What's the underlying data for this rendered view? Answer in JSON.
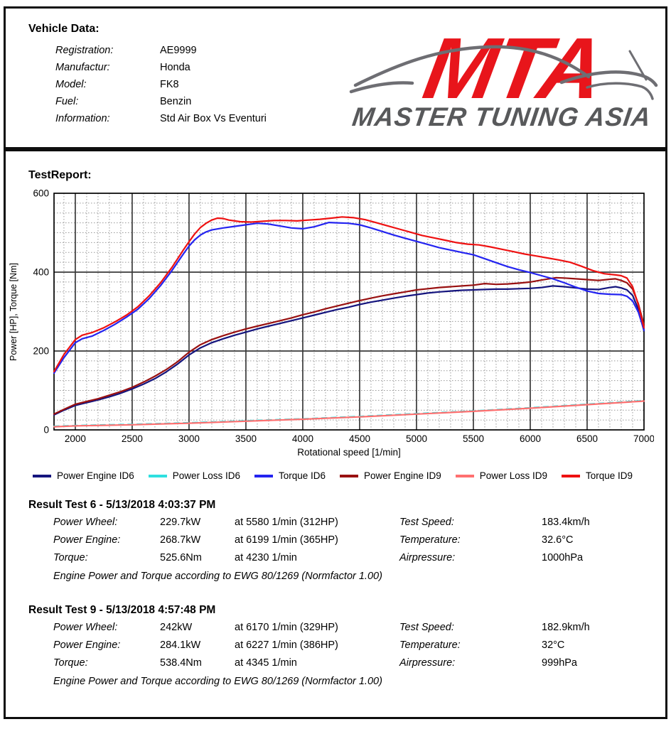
{
  "header": {
    "vehicle_data_title": "Vehicle Data:",
    "fields": [
      {
        "label": "Registration:",
        "value": "AE9999"
      },
      {
        "label": "Manufactur:",
        "value": "Honda"
      },
      {
        "label": "Model:",
        "value": "FK8"
      },
      {
        "label": "Fuel:",
        "value": "Benzin"
      },
      {
        "label": "Information:",
        "value": "Std Air Box Vs Eventuri"
      }
    ],
    "logo": {
      "acronym": "MTA",
      "name": "MASTER TUNING ASIA",
      "accent_color": "#e8151b",
      "gray_color": "#58595b",
      "car_color": "#6e6e73"
    }
  },
  "report": {
    "title": "TestReport:"
  },
  "chart_data": {
    "type": "line",
    "title": "",
    "xlabel": "Rotational  speed [1/min]",
    "ylabel": "Power [HP], Torque [Nm]",
    "xlim": [
      1813,
      7000
    ],
    "ylim": [
      0,
      600
    ],
    "x_ticks": [
      2000,
      2500,
      3000,
      3500,
      4000,
      4500,
      5000,
      5500,
      6000,
      6500,
      7000
    ],
    "y_ticks": [
      0,
      200,
      400,
      600
    ],
    "minor_x_step": 100,
    "major_x_step": 500,
    "minor_y_step": 25,
    "major_y_step": 200,
    "grid": true,
    "legend_position": "bottom",
    "grid_minor_color": "#999999",
    "grid_major_color": "#3a3a3a",
    "series": [
      {
        "name": "Power Engine ID6",
        "color": "#15157e",
        "points": [
          [
            1813,
            38
          ],
          [
            1900,
            50
          ],
          [
            2000,
            62
          ],
          [
            2100,
            69
          ],
          [
            2200,
            76
          ],
          [
            2300,
            84
          ],
          [
            2400,
            93
          ],
          [
            2500,
            104
          ],
          [
            2600,
            116
          ],
          [
            2700,
            130
          ],
          [
            2800,
            147
          ],
          [
            2900,
            167
          ],
          [
            3000,
            190
          ],
          [
            3100,
            208
          ],
          [
            3200,
            221
          ],
          [
            3300,
            231
          ],
          [
            3400,
            240
          ],
          [
            3500,
            248
          ],
          [
            3600,
            256
          ],
          [
            3700,
            263
          ],
          [
            3800,
            270
          ],
          [
            3900,
            277
          ],
          [
            4000,
            284
          ],
          [
            4100,
            291
          ],
          [
            4200,
            298
          ],
          [
            4300,
            305
          ],
          [
            4400,
            311
          ],
          [
            4500,
            318
          ],
          [
            4600,
            324
          ],
          [
            4700,
            329
          ],
          [
            4800,
            334
          ],
          [
            4900,
            339
          ],
          [
            5000,
            343
          ],
          [
            5100,
            347
          ],
          [
            5200,
            350
          ],
          [
            5300,
            352
          ],
          [
            5400,
            354
          ],
          [
            5500,
            355
          ],
          [
            5600,
            356
          ],
          [
            5700,
            357
          ],
          [
            5800,
            357
          ],
          [
            5900,
            358
          ],
          [
            6000,
            359
          ],
          [
            6100,
            361
          ],
          [
            6199,
            365
          ],
          [
            6300,
            363
          ],
          [
            6400,
            360
          ],
          [
            6500,
            357
          ],
          [
            6600,
            356
          ],
          [
            6700,
            361
          ],
          [
            6750,
            363
          ],
          [
            6800,
            360
          ],
          [
            6850,
            355
          ],
          [
            6900,
            341
          ],
          [
            6950,
            306
          ],
          [
            7000,
            251
          ]
        ]
      },
      {
        "name": "Power Loss ID6",
        "color": "#2fe0e0",
        "points": [
          [
            1813,
            9
          ],
          [
            2000,
            11
          ],
          [
            2500,
            14
          ],
          [
            3000,
            18
          ],
          [
            3500,
            23
          ],
          [
            4000,
            28
          ],
          [
            4500,
            34
          ],
          [
            5000,
            41
          ],
          [
            5500,
            48
          ],
          [
            6000,
            56
          ],
          [
            6500,
            65
          ],
          [
            7000,
            74
          ]
        ]
      },
      {
        "name": "Torque ID6",
        "color": "#2424f0",
        "points": [
          [
            1813,
            144
          ],
          [
            1900,
            183
          ],
          [
            2000,
            221
          ],
          [
            2060,
            231
          ],
          [
            2150,
            238
          ],
          [
            2250,
            252
          ],
          [
            2350,
            268
          ],
          [
            2450,
            286
          ],
          [
            2550,
            306
          ],
          [
            2650,
            333
          ],
          [
            2750,
            366
          ],
          [
            2850,
            404
          ],
          [
            2950,
            446
          ],
          [
            3000,
            466
          ],
          [
            3050,
            482
          ],
          [
            3100,
            494
          ],
          [
            3150,
            502
          ],
          [
            3200,
            507
          ],
          [
            3300,
            512
          ],
          [
            3400,
            516
          ],
          [
            3500,
            520
          ],
          [
            3600,
            524
          ],
          [
            3700,
            522
          ],
          [
            3800,
            517
          ],
          [
            3900,
            512
          ],
          [
            4000,
            510
          ],
          [
            4100,
            515
          ],
          [
            4230,
            526
          ],
          [
            4300,
            525
          ],
          [
            4400,
            524
          ],
          [
            4500,
            520
          ],
          [
            4600,
            512
          ],
          [
            4700,
            503
          ],
          [
            4800,
            494
          ],
          [
            4900,
            486
          ],
          [
            5000,
            478
          ],
          [
            5100,
            470
          ],
          [
            5200,
            462
          ],
          [
            5300,
            456
          ],
          [
            5400,
            450
          ],
          [
            5500,
            444
          ],
          [
            5600,
            434
          ],
          [
            5700,
            424
          ],
          [
            5800,
            414
          ],
          [
            5900,
            406
          ],
          [
            6000,
            399
          ],
          [
            6100,
            391
          ],
          [
            6200,
            383
          ],
          [
            6300,
            373
          ],
          [
            6400,
            362
          ],
          [
            6500,
            352
          ],
          [
            6600,
            346
          ],
          [
            6700,
            344
          ],
          [
            6800,
            343
          ],
          [
            6850,
            339
          ],
          [
            6900,
            327
          ],
          [
            6950,
            299
          ],
          [
            7000,
            253
          ]
        ]
      },
      {
        "name": "Power Engine ID9",
        "color": "#991111",
        "points": [
          [
            1813,
            40
          ],
          [
            1900,
            52
          ],
          [
            2000,
            65
          ],
          [
            2100,
            72
          ],
          [
            2200,
            79
          ],
          [
            2300,
            88
          ],
          [
            2400,
            97
          ],
          [
            2500,
            108
          ],
          [
            2600,
            121
          ],
          [
            2700,
            136
          ],
          [
            2800,
            153
          ],
          [
            2900,
            173
          ],
          [
            3000,
            197
          ],
          [
            3100,
            216
          ],
          [
            3200,
            229
          ],
          [
            3300,
            239
          ],
          [
            3400,
            248
          ],
          [
            3500,
            256
          ],
          [
            3600,
            263
          ],
          [
            3700,
            270
          ],
          [
            3800,
            277
          ],
          [
            3900,
            284
          ],
          [
            4000,
            292
          ],
          [
            4100,
            299
          ],
          [
            4200,
            307
          ],
          [
            4300,
            314
          ],
          [
            4400,
            321
          ],
          [
            4500,
            328
          ],
          [
            4600,
            334
          ],
          [
            4700,
            340
          ],
          [
            4800,
            345
          ],
          [
            4900,
            350
          ],
          [
            5000,
            355
          ],
          [
            5100,
            358
          ],
          [
            5200,
            361
          ],
          [
            5300,
            363
          ],
          [
            5400,
            365
          ],
          [
            5500,
            367
          ],
          [
            5600,
            371
          ],
          [
            5700,
            369
          ],
          [
            5800,
            370
          ],
          [
            5900,
            372
          ],
          [
            6000,
            375
          ],
          [
            6100,
            380
          ],
          [
            6227,
            386
          ],
          [
            6300,
            385
          ],
          [
            6400,
            383
          ],
          [
            6500,
            381
          ],
          [
            6600,
            379
          ],
          [
            6700,
            382
          ],
          [
            6750,
            383
          ],
          [
            6800,
            379
          ],
          [
            6850,
            373
          ],
          [
            6900,
            357
          ],
          [
            6950,
            320
          ],
          [
            7000,
            266
          ]
        ]
      },
      {
        "name": "Power Loss ID9",
        "color": "#ff7070",
        "points": [
          [
            1813,
            8
          ],
          [
            2000,
            10
          ],
          [
            2500,
            13
          ],
          [
            3000,
            17
          ],
          [
            3500,
            22
          ],
          [
            4000,
            27
          ],
          [
            4500,
            33
          ],
          [
            5000,
            40
          ],
          [
            5500,
            47
          ],
          [
            6000,
            55
          ],
          [
            6500,
            64
          ],
          [
            7000,
            73
          ]
        ]
      },
      {
        "name": "Torque ID9",
        "color": "#ee1111",
        "points": [
          [
            1813,
            148
          ],
          [
            1900,
            191
          ],
          [
            2000,
            229
          ],
          [
            2060,
            240
          ],
          [
            2150,
            247
          ],
          [
            2250,
            259
          ],
          [
            2350,
            274
          ],
          [
            2450,
            291
          ],
          [
            2550,
            312
          ],
          [
            2650,
            340
          ],
          [
            2750,
            373
          ],
          [
            2850,
            412
          ],
          [
            2950,
            456
          ],
          [
            3000,
            477
          ],
          [
            3050,
            497
          ],
          [
            3100,
            513
          ],
          [
            3150,
            524
          ],
          [
            3200,
            532
          ],
          [
            3250,
            537
          ],
          [
            3300,
            536
          ],
          [
            3350,
            532
          ],
          [
            3450,
            528
          ],
          [
            3550,
            527
          ],
          [
            3650,
            529
          ],
          [
            3750,
            531
          ],
          [
            3850,
            531
          ],
          [
            3950,
            530
          ],
          [
            4050,
            532
          ],
          [
            4150,
            534
          ],
          [
            4250,
            537
          ],
          [
            4345,
            540
          ],
          [
            4450,
            538
          ],
          [
            4550,
            533
          ],
          [
            4650,
            525
          ],
          [
            4750,
            517
          ],
          [
            4850,
            509
          ],
          [
            4950,
            501
          ],
          [
            5050,
            493
          ],
          [
            5150,
            487
          ],
          [
            5250,
            481
          ],
          [
            5350,
            475
          ],
          [
            5450,
            471
          ],
          [
            5550,
            469
          ],
          [
            5650,
            464
          ],
          [
            5750,
            458
          ],
          [
            5850,
            452
          ],
          [
            5950,
            446
          ],
          [
            6050,
            441
          ],
          [
            6150,
            436
          ],
          [
            6250,
            431
          ],
          [
            6350,
            425
          ],
          [
            6450,
            415
          ],
          [
            6550,
            404
          ],
          [
            6650,
            396
          ],
          [
            6750,
            393
          ],
          [
            6800,
            391
          ],
          [
            6850,
            385
          ],
          [
            6900,
            363
          ],
          [
            6950,
            317
          ],
          [
            7000,
            259
          ]
        ]
      }
    ]
  },
  "results": [
    {
      "title": "Result Test 6 - 5/13/2018 4:03:37 PM",
      "rows": [
        {
          "label": "Power Wheel:",
          "value": "229.7kW",
          "at": "at 5580 1/min (312HP)",
          "label2": "Test Speed:",
          "value2": "183.4km/h"
        },
        {
          "label": "Power Engine:",
          "value": "268.7kW",
          "at": "at 6199 1/min (365HP)",
          "label2": "Temperature:",
          "value2": "32.6°C"
        },
        {
          "label": "Torque:",
          "value": "525.6Nm",
          "at": "at 4230 1/min",
          "label2": "Airpressure:",
          "value2": "1000hPa"
        }
      ],
      "footnote": "Engine Power and Torque according to EWG 80/1269 (Normfactor 1.00)"
    },
    {
      "title": "Result Test 9 - 5/13/2018 4:57:48 PM",
      "rows": [
        {
          "label": "Power Wheel:",
          "value": "242kW",
          "at": "at 6170 1/min (329HP)",
          "label2": "Test Speed:",
          "value2": "182.9km/h"
        },
        {
          "label": "Power Engine:",
          "value": "284.1kW",
          "at": "at 6227 1/min (386HP)",
          "label2": "Temperature:",
          "value2": "32°C"
        },
        {
          "label": "Torque:",
          "value": "538.4Nm",
          "at": "at 4345 1/min",
          "label2": "Airpressure:",
          "value2": "999hPa"
        }
      ],
      "footnote": "Engine Power and Torque according to EWG 80/1269 (Normfactor 1.00)"
    }
  ]
}
